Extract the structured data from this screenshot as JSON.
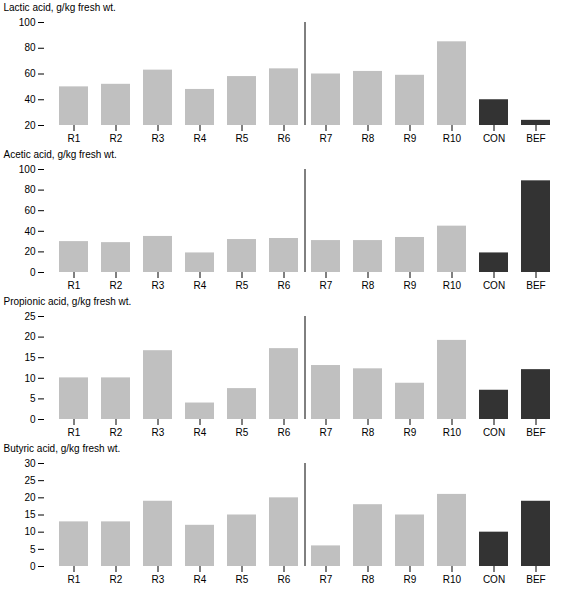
{
  "chart_data": [
    {
      "type": "bar",
      "ylabel": "Lactic acid, g/kg fresh wt.",
      "categories": [
        "R1",
        "R2",
        "R3",
        "R4",
        "R5",
        "R6",
        "R7",
        "R8",
        "R9",
        "R10",
        "CON",
        "BEF"
      ],
      "values": [
        50,
        52,
        63,
        48,
        58,
        64,
        60,
        62,
        59,
        85,
        40,
        24
      ],
      "colors": [
        "#c0c0c0",
        "#c0c0c0",
        "#c0c0c0",
        "#c0c0c0",
        "#c0c0c0",
        "#c0c0c0",
        "#c0c0c0",
        "#c0c0c0",
        "#c0c0c0",
        "#c0c0c0",
        "#333333",
        "#333333"
      ],
      "ylim": [
        20,
        100
      ],
      "yticks": [
        20,
        40,
        60,
        80,
        100
      ]
    },
    {
      "type": "bar",
      "ylabel": "Acetic acid, g/kg fresh wt.",
      "categories": [
        "R1",
        "R2",
        "R3",
        "R4",
        "R5",
        "R6",
        "R7",
        "R8",
        "R9",
        "R10",
        "CON",
        "BEF"
      ],
      "values": [
        30,
        29,
        35,
        19,
        32,
        33,
        31,
        31,
        34,
        45,
        19,
        89
      ],
      "colors": [
        "#c0c0c0",
        "#c0c0c0",
        "#c0c0c0",
        "#c0c0c0",
        "#c0c0c0",
        "#c0c0c0",
        "#c0c0c0",
        "#c0c0c0",
        "#c0c0c0",
        "#c0c0c0",
        "#333333",
        "#333333"
      ],
      "ylim": [
        0,
        100
      ],
      "yticks": [
        0,
        20,
        40,
        60,
        80,
        100
      ]
    },
    {
      "type": "bar",
      "ylabel": "Propionic acid, g/kg fresh wt.",
      "categories": [
        "R1",
        "R2",
        "R3",
        "R4",
        "R5",
        "R6",
        "R7",
        "R8",
        "R9",
        "R10",
        "CON",
        "BEF"
      ],
      "values": [
        10.1,
        10.1,
        16.7,
        4.0,
        7.5,
        17.2,
        13.1,
        12.3,
        8.8,
        19.2,
        7.1,
        12.1
      ],
      "colors": [
        "#c0c0c0",
        "#c0c0c0",
        "#c0c0c0",
        "#c0c0c0",
        "#c0c0c0",
        "#c0c0c0",
        "#c0c0c0",
        "#c0c0c0",
        "#c0c0c0",
        "#c0c0c0",
        "#333333",
        "#333333"
      ],
      "ylim": [
        0,
        25
      ],
      "yticks": [
        0,
        5,
        10,
        15,
        20,
        25
      ]
    },
    {
      "type": "bar",
      "ylabel": "Butyric acid, g/kg fresh wt.",
      "categories": [
        "R1",
        "R2",
        "R3",
        "R4",
        "R5",
        "R6",
        "R7",
        "R8",
        "R9",
        "R10",
        "CON",
        "BEF"
      ],
      "values": [
        13,
        13,
        19,
        12,
        15,
        20,
        6,
        18,
        15,
        21,
        10,
        19
      ],
      "colors": [
        "#c0c0c0",
        "#c0c0c0",
        "#c0c0c0",
        "#c0c0c0",
        "#c0c0c0",
        "#c0c0c0",
        "#c0c0c0",
        "#c0c0c0",
        "#c0c0c0",
        "#c0c0c0",
        "#333333",
        "#333333"
      ],
      "ylim": [
        0,
        30
      ],
      "yticks": [
        0,
        5,
        10,
        15,
        20,
        25,
        30
      ]
    }
  ]
}
